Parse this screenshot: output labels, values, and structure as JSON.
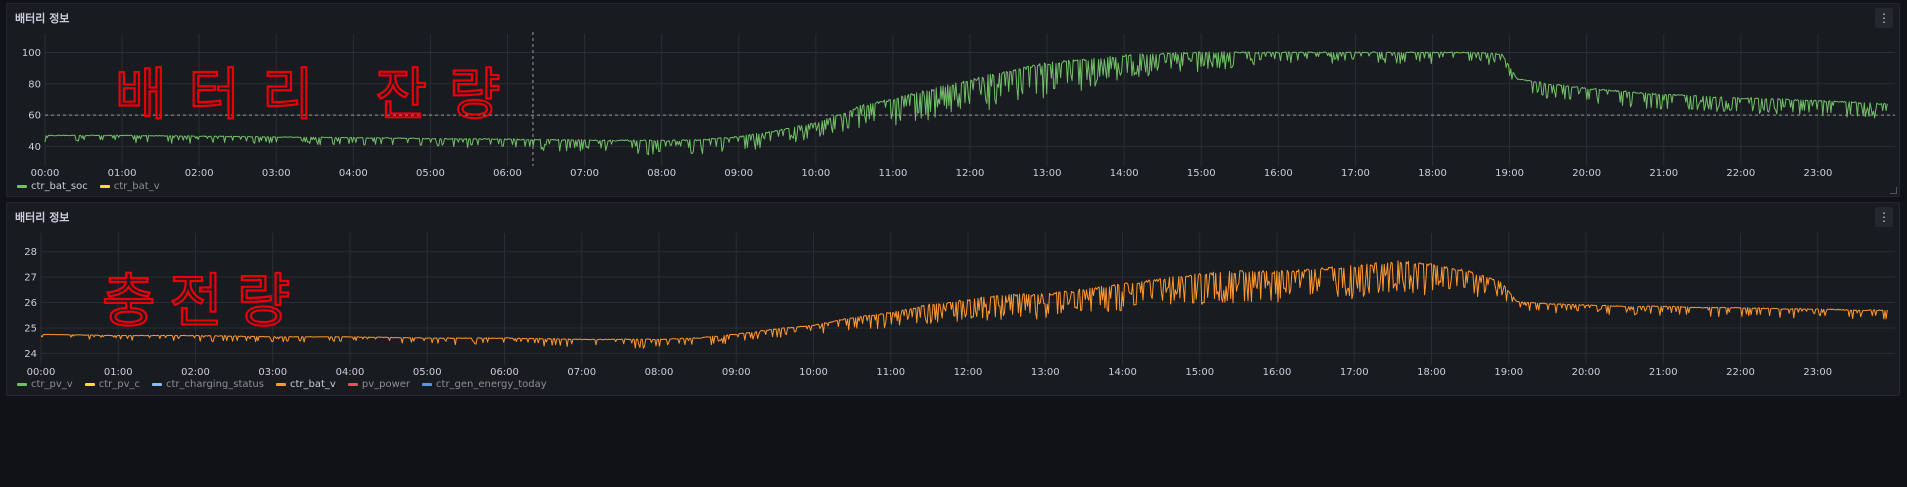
{
  "panels": [
    {
      "title": "배터리 정보",
      "menu_icon": "vertical-ellipsis-icon",
      "annotation": "배터리 잔량",
      "legend": [
        {
          "name": "ctr_bat_soc",
          "color": "#73bf69",
          "active": true
        },
        {
          "name": "ctr_bat_v",
          "color": "#fade2a",
          "active": false
        }
      ]
    },
    {
      "title": "배터리 정보",
      "menu_icon": "vertical-ellipsis-icon",
      "annotation": "충전량",
      "legend": [
        {
          "name": "ctr_pv_v",
          "color": "#73bf69",
          "active": false
        },
        {
          "name": "ctr_pv_c",
          "color": "#fade2a",
          "active": false
        },
        {
          "name": "ctr_charging_status",
          "color": "#8ab8ff",
          "active": false
        },
        {
          "name": "ctr_bat_v",
          "color": "#ff9830",
          "active": true
        },
        {
          "name": "pv_power",
          "color": "#f2495c",
          "active": false
        },
        {
          "name": "ctr_gen_energy_today",
          "color": "#5794f2",
          "active": false
        }
      ]
    }
  ],
  "chart_data": [
    {
      "type": "line",
      "x_ticks": [
        "00:00",
        "01:00",
        "02:00",
        "03:00",
        "04:00",
        "05:00",
        "06:00",
        "07:00",
        "08:00",
        "09:00",
        "10:00",
        "11:00",
        "12:00",
        "13:00",
        "14:00",
        "15:00",
        "16:00",
        "17:00",
        "18:00",
        "19:00",
        "20:00",
        "21:00",
        "22:00",
        "23:00"
      ],
      "y_ticks": [
        40,
        60,
        80,
        100
      ],
      "ylim": [
        30,
        108
      ],
      "xlim": [
        0,
        24
      ],
      "threshold": 60,
      "cursor_hour": 6.33,
      "grid": true,
      "series": [
        {
          "name": "ctr_bat_soc",
          "color": "#73bf69",
          "x": [
            0,
            1,
            2,
            3,
            4,
            5,
            6,
            7,
            8,
            8.5,
            9,
            9.5,
            10,
            10.3,
            10.6,
            11,
            11.5,
            12,
            12.5,
            13,
            13.5,
            14,
            14.5,
            15,
            15.5,
            16,
            16.5,
            17,
            17.5,
            18,
            18.5,
            18.9,
            19.1,
            19.5,
            20,
            20.5,
            21,
            21.5,
            22,
            22.5,
            23,
            23.5,
            23.9
          ],
          "values": [
            47,
            47,
            46.5,
            46,
            45.5,
            45,
            44.5,
            44,
            43.5,
            44,
            46,
            50,
            55,
            60,
            66,
            70,
            76,
            82,
            88,
            93,
            95,
            98,
            99,
            100,
            100,
            100,
            100,
            100,
            100,
            100,
            100,
            99,
            83,
            80,
            77,
            75,
            73,
            72,
            71,
            70,
            69,
            68,
            67
          ],
          "dip_depth": [
            4,
            4,
            4,
            4,
            4,
            4,
            6,
            6,
            8,
            8,
            8,
            8,
            8,
            10,
            12,
            14,
            16,
            18,
            18,
            18,
            16,
            12,
            12,
            10,
            8,
            6,
            6,
            6,
            6,
            6,
            6,
            6,
            6,
            8,
            8,
            8,
            8,
            8,
            8,
            8,
            8,
            8,
            8
          ]
        }
      ]
    },
    {
      "type": "line",
      "x_ticks": [
        "00:00",
        "01:00",
        "02:00",
        "03:00",
        "04:00",
        "05:00",
        "06:00",
        "07:00",
        "08:00",
        "09:00",
        "10:00",
        "11:00",
        "12:00",
        "13:00",
        "14:00",
        "15:00",
        "16:00",
        "17:00",
        "18:00",
        "19:00",
        "20:00",
        "21:00",
        "22:00",
        "23:00"
      ],
      "y_ticks": [
        24,
        25,
        26,
        27,
        28
      ],
      "ylim": [
        23.7,
        28.5
      ],
      "xlim": [
        0,
        24
      ],
      "grid": true,
      "series": [
        {
          "name": "ctr_bat_v",
          "color": "#ff9830",
          "x": [
            0,
            1,
            2,
            3,
            4,
            5,
            6,
            7,
            8,
            8.5,
            9,
            9.5,
            10,
            10.5,
            11,
            11.5,
            12,
            12.5,
            13,
            13.5,
            14,
            14.5,
            15,
            15.5,
            16,
            16.5,
            17,
            17.5,
            18,
            18.5,
            18.9,
            19.1,
            19.5,
            20,
            20.5,
            21,
            21.5,
            22,
            22.5,
            23,
            23.5,
            23.9
          ],
          "values": [
            24.75,
            24.7,
            24.7,
            24.65,
            24.65,
            24.6,
            24.6,
            24.55,
            24.55,
            24.6,
            24.75,
            24.95,
            25.1,
            25.4,
            25.6,
            25.9,
            26.1,
            26.3,
            26.3,
            26.5,
            26.7,
            26.9,
            27.1,
            27.2,
            27.2,
            27.3,
            27.4,
            27.6,
            27.5,
            27.2,
            26.8,
            26.05,
            25.95,
            25.9,
            25.85,
            25.85,
            25.8,
            25.8,
            25.75,
            25.75,
            25.7,
            25.7
          ],
          "dip_depth": [
            0.15,
            0.15,
            0.2,
            0.2,
            0.2,
            0.2,
            0.25,
            0.25,
            0.3,
            0.3,
            0.3,
            0.3,
            0.3,
            0.4,
            0.5,
            0.6,
            0.7,
            0.8,
            0.8,
            0.8,
            0.9,
            0.9,
            1.0,
            1.0,
            1.0,
            1.0,
            1.1,
            1.1,
            1.0,
            0.8,
            0.5,
            0.3,
            0.3,
            0.3,
            0.3,
            0.3,
            0.3,
            0.3,
            0.3,
            0.3,
            0.3,
            0.3
          ]
        }
      ]
    }
  ]
}
